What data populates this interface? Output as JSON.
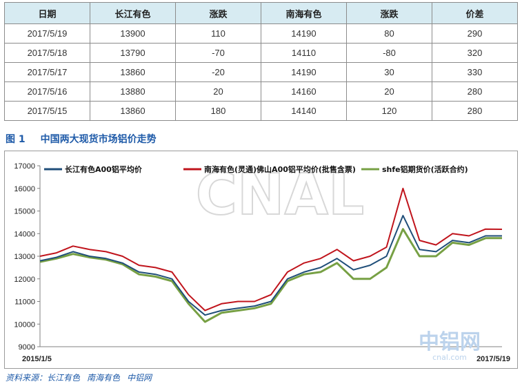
{
  "table": {
    "headers": [
      "日期",
      "长江有色",
      "涨跌",
      "南海有色",
      "涨跌",
      "价差"
    ],
    "rows": [
      [
        "2017/5/19",
        "13900",
        "110",
        "14190",
        "80",
        "290"
      ],
      [
        "2017/5/18",
        "13790",
        "-70",
        "14110",
        "-80",
        "320"
      ],
      [
        "2017/5/17",
        "13860",
        "-20",
        "14190",
        "30",
        "330"
      ],
      [
        "2017/5/16",
        "13880",
        "20",
        "14160",
        "20",
        "280"
      ],
      [
        "2017/5/15",
        "13860",
        "180",
        "14140",
        "120",
        "280"
      ]
    ]
  },
  "caption": {
    "number": "图 1",
    "text": "中国两大现货市场铝价走势"
  },
  "watermark": "CNAL",
  "logo": {
    "main": "中铝网",
    "sub": "cnal.com"
  },
  "source": {
    "label": "资料来源：长江有色",
    "items": [
      "南海有色",
      "中铝网"
    ]
  },
  "colors": {
    "changjiang": "#1f4e79",
    "nanhai": "#c0141c",
    "shfe": "#77a044"
  },
  "chart_data": {
    "type": "line",
    "title": "",
    "xlabel": "",
    "ylabel": "",
    "ylim": [
      9000,
      17000
    ],
    "yticks": [
      9000,
      10000,
      11000,
      12000,
      13000,
      14000,
      15000,
      16000,
      17000
    ],
    "x_range": [
      "2015/1/5",
      "2017/5/19"
    ],
    "x_tick_labels": [
      "2015/1/5",
      "2017/5/19"
    ],
    "legend_placement": "top",
    "grid": false,
    "x": [
      "2015-01",
      "2015-02",
      "2015-03",
      "2015-04",
      "2015-05",
      "2015-06",
      "2015-07",
      "2015-08",
      "2015-09",
      "2015-10",
      "2015-11",
      "2015-12",
      "2016-01",
      "2016-02",
      "2016-03",
      "2016-04",
      "2016-05",
      "2016-06",
      "2016-07",
      "2016-08",
      "2016-09",
      "2016-10",
      "2016-11",
      "2016-12",
      "2017-01",
      "2017-02",
      "2017-03",
      "2017-04",
      "2017-05"
    ],
    "series": [
      {
        "name": "长江有色A00铝平均价",
        "values": [
          12800,
          12950,
          13200,
          13000,
          12900,
          12700,
          12300,
          12200,
          12000,
          11000,
          10400,
          10600,
          10700,
          10800,
          11000,
          12000,
          12300,
          12500,
          12900,
          12400,
          12600,
          13000,
          14800,
          13300,
          13200,
          13700,
          13600,
          13900,
          13900
        ]
      },
      {
        "name": "南海有色(灵通)佛山A00铝平均价(批售含票)",
        "values": [
          13000,
          13150,
          13450,
          13300,
          13200,
          13000,
          12600,
          12500,
          12300,
          11300,
          10600,
          10900,
          11000,
          11000,
          11300,
          12300,
          12700,
          12900,
          13300,
          12800,
          13000,
          13400,
          16000,
          13700,
          13500,
          14000,
          13900,
          14200,
          14190
        ]
      },
      {
        "name": "shfe铝期货价(活跃合约)",
        "values": [
          12750,
          12900,
          13100,
          12950,
          12850,
          12650,
          12200,
          12100,
          11900,
          10900,
          10100,
          10500,
          10600,
          10700,
          10900,
          11900,
          12200,
          12300,
          12700,
          12000,
          12000,
          12500,
          14200,
          13000,
          13000,
          13600,
          13500,
          13800,
          13800
        ]
      }
    ]
  }
}
